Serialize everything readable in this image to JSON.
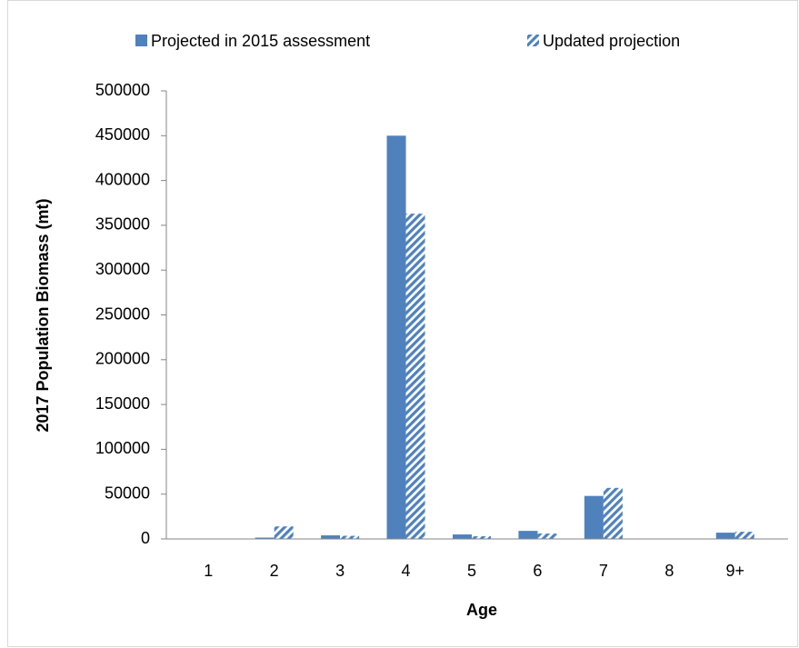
{
  "chart_data": {
    "type": "bar",
    "x_label": "Age",
    "y_label": "2017 Population Biomass (mt)",
    "categories": [
      "1",
      "2",
      "3",
      "4",
      "5",
      "6",
      "7",
      "8",
      "9+"
    ],
    "series": [
      {
        "name": "Projected in 2015 assessment",
        "color": "#4f81bd",
        "pattern": "solid",
        "values": [
          500,
          1500,
          4000,
          450000,
          5000,
          9000,
          48000,
          500,
          7000
        ]
      },
      {
        "name": "Updated projection",
        "color": "#4f81bd",
        "pattern": "hatch",
        "values": [
          300,
          14000,
          3500,
          363000,
          3000,
          6000,
          57000,
          300,
          8000
        ]
      }
    ],
    "ylim": [
      0,
      500000
    ],
    "yticks": [
      0,
      50000,
      100000,
      150000,
      200000,
      250000,
      300000,
      350000,
      400000,
      450000,
      500000
    ],
    "grid": false,
    "legend": "top"
  }
}
